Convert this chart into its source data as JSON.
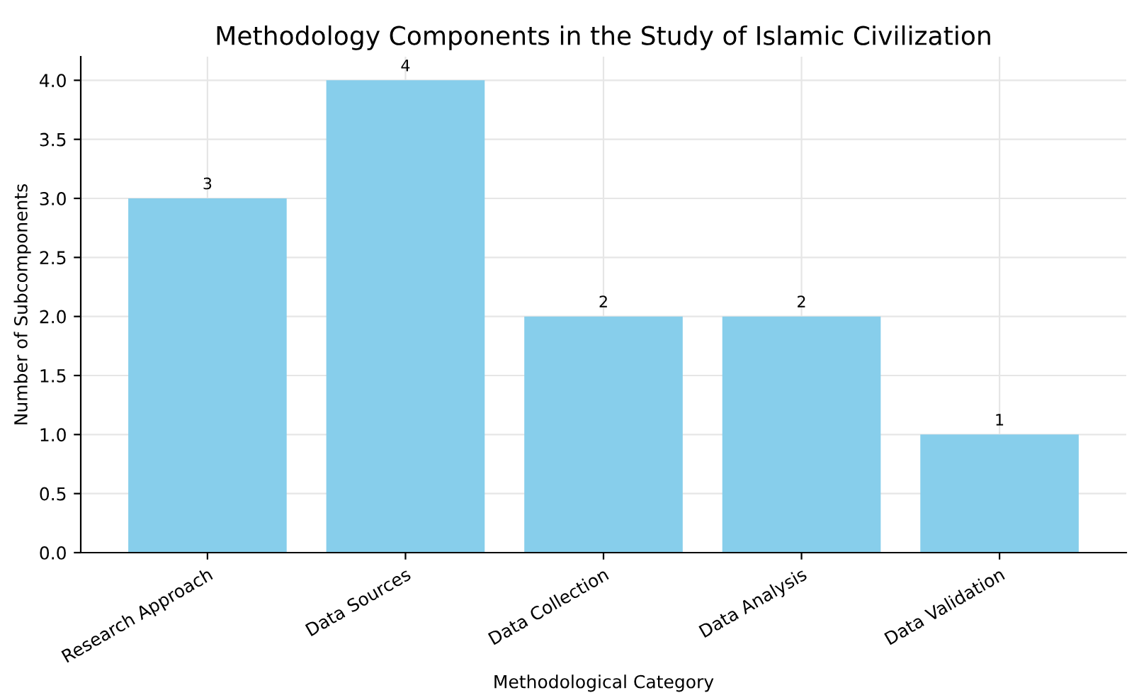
{
  "chart_data": {
    "type": "bar",
    "title": "Methodology Components in the Study of Islamic Civilization",
    "xlabel": "Methodological Category",
    "ylabel": "Number of Subcomponents",
    "categories": [
      "Research Approach",
      "Data Sources",
      "Data Collection",
      "Data Analysis",
      "Data Validation"
    ],
    "values": [
      3,
      4,
      2,
      2,
      1
    ],
    "color": "#87ceeb",
    "ylim": [
      0,
      4.2
    ],
    "yticks": [
      {
        "value": 0,
        "label": "0.0"
      },
      {
        "value": 0.5,
        "label": "0.5"
      },
      {
        "value": 1,
        "label": "1.0"
      },
      {
        "value": 1.5,
        "label": "1.5"
      },
      {
        "value": 2,
        "label": "2.0"
      },
      {
        "value": 2.5,
        "label": "2.5"
      },
      {
        "value": 3,
        "label": "3.0"
      },
      {
        "value": 3.5,
        "label": "3.5"
      },
      {
        "value": 4,
        "label": "4.0"
      }
    ],
    "grid": true,
    "data_labels": true
  }
}
